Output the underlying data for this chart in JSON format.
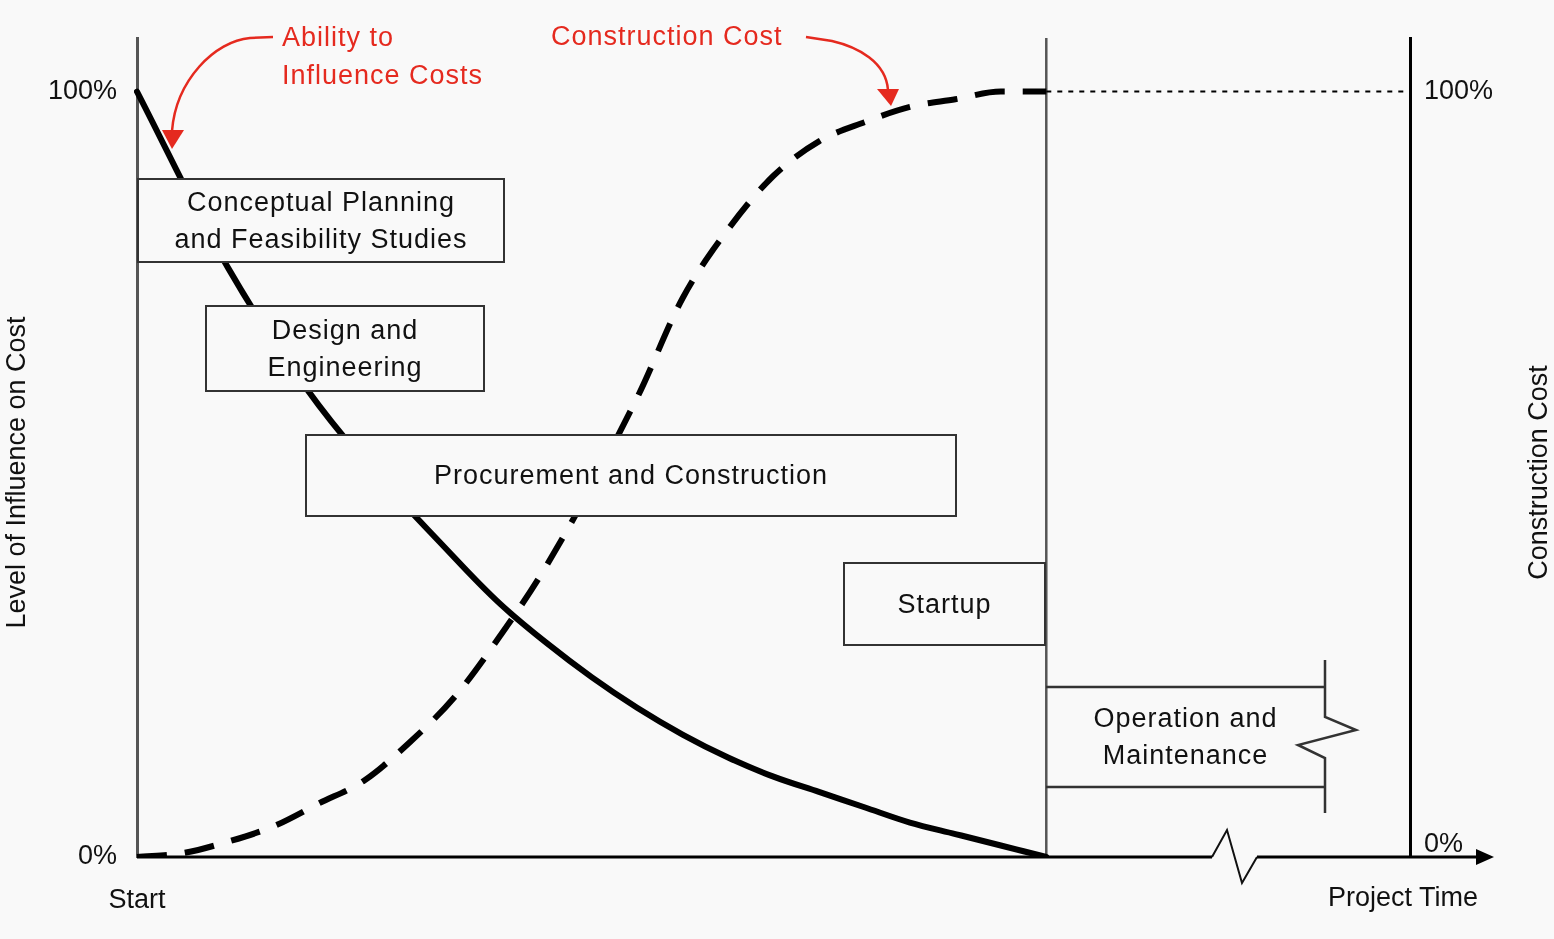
{
  "chart_data": {
    "type": "line",
    "xlabel": "Project Time",
    "ylabel": "Level of Influence on Cost",
    "y2label": "Construction Cost",
    "categories": [
      "Start",
      null,
      null,
      null,
      null,
      null,
      null,
      null,
      null,
      null,
      null,
      null,
      null,
      null,
      null,
      null,
      null,
      null,
      null,
      null,
      null,
      null,
      null,
      null,
      null,
      null,
      null,
      null,
      null
    ],
    "ylim": [
      0,
      107
    ],
    "yticks": [
      {
        "value": 0,
        "label": "0%"
      },
      {
        "value": 100,
        "label": "100%"
      }
    ],
    "y2lim": [
      0,
      107
    ],
    "y2ticks": [
      {
        "value": 0,
        "label": "0%"
      },
      {
        "value": 100,
        "label": "100%"
      }
    ],
    "series": [
      {
        "name": "Ability to Influence Costs",
        "color": "#000000",
        "line_style": "solid",
        "values": [
          100,
          null,
          77,
          null,
          59,
          null,
          null,
          39,
          33,
          28,
          23.5,
          19.5,
          16,
          13,
          10.5,
          8.5,
          6.5,
          4.5,
          3,
          1.5,
          0,
          null,
          null,
          null,
          null,
          null,
          null,
          null,
          null
        ]
      },
      {
        "name": "Construction Cost",
        "color": "#000000",
        "line_style": "dashed",
        "values": [
          0,
          0.5,
          2,
          4,
          7,
          10,
          15,
          21,
          29,
          38,
          null,
          60,
          73,
          82,
          89,
          93.5,
          96,
          98,
          99,
          100,
          100,
          null,
          null,
          null,
          null,
          null,
          null,
          null,
          null
        ]
      },
      {
        "color": "#000000",
        "line_style": "dotted",
        "values": [
          null,
          null,
          null,
          null,
          null,
          null,
          null,
          null,
          null,
          null,
          null,
          null,
          null,
          null,
          null,
          null,
          null,
          null,
          null,
          null,
          100,
          100,
          100,
          100,
          100,
          100,
          100,
          100,
          100
        ]
      }
    ],
    "annotations": [
      "Conceptual Planning and Feasibility Studies",
      "Design and Engineering",
      "Procurement and Construction",
      "Startup",
      "Operation and Maintenance"
    ],
    "marker": "none"
  }
}
